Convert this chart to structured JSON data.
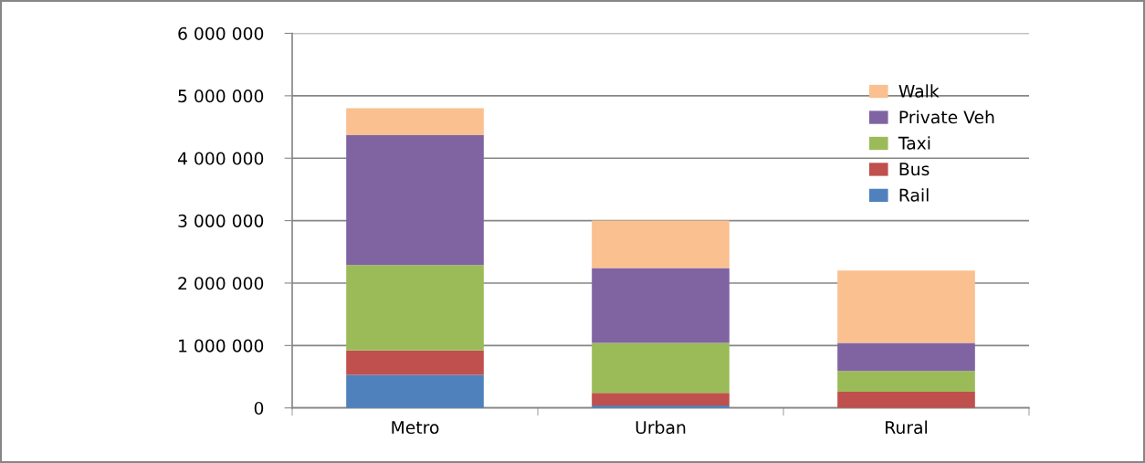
{
  "chart_data": {
    "type": "bar",
    "stacked": true,
    "categories": [
      "Metro",
      "Urban",
      "Rural"
    ],
    "series": [
      {
        "name": "Rail",
        "color": "#4f81bd",
        "values": [
          530000,
          40000,
          0
        ]
      },
      {
        "name": "Bus",
        "color": "#c0504d",
        "values": [
          390000,
          200000,
          260000
        ]
      },
      {
        "name": "Taxi",
        "color": "#9bbb59",
        "values": [
          1370000,
          800000,
          330000
        ]
      },
      {
        "name": "Private Veh",
        "color": "#8064a2",
        "values": [
          2080000,
          1200000,
          450000
        ]
      },
      {
        "name": "Walk",
        "color": "#fac090",
        "values": [
          430000,
          760000,
          1160000
        ]
      }
    ],
    "ylim": [
      0,
      6000000
    ],
    "yticks": [
      {
        "value": 0,
        "label": "0"
      },
      {
        "value": 1000000,
        "label": "1 000 000"
      },
      {
        "value": 2000000,
        "label": "2 000 000"
      },
      {
        "value": 3000000,
        "label": "3 000 000"
      },
      {
        "value": 4000000,
        "label": "4 000 000"
      },
      {
        "value": 5000000,
        "label": "5 000 000"
      },
      {
        "value": 6000000,
        "label": "6 000 000"
      }
    ],
    "grid": "y",
    "legend": "top right"
  }
}
